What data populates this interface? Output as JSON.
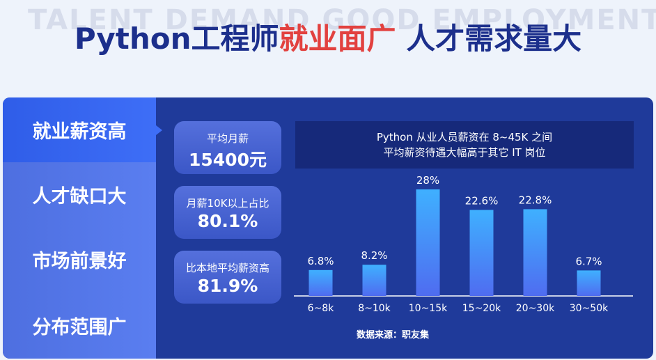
{
  "watermark": "TALENT DEMAND GOOD EMPLOYMENT",
  "headline": {
    "part1": "Python工程师",
    "part2": "就业面广",
    "part3": "人才需求量大"
  },
  "sidebar": {
    "tabs": [
      {
        "label": "就业薪资高",
        "active": true
      },
      {
        "label": "人才缺口大",
        "active": false
      },
      {
        "label": "市场前景好",
        "active": false
      },
      {
        "label": "分布范围广",
        "active": false
      }
    ]
  },
  "stats": [
    {
      "label": "平均月薪",
      "value": "15400元"
    },
    {
      "label": "月薪10K以上占比",
      "value": "80.1%"
    },
    {
      "label": "比本地平均薪资高",
      "value": "81.9%"
    }
  ],
  "note": {
    "line1": "Python 从业人员薪资在 8~45K 之间",
    "line2": "平均薪资待遇大幅高于其它 IT 岗位"
  },
  "source": "数据来源：职友集",
  "colors": {
    "accent_red": "#e2413f",
    "title_blue": "#1c2f8c",
    "panel_bg": "#1f3a9a",
    "bar_top": "#3fb0ff",
    "bar_bottom": "#4f6cf0"
  },
  "chart_data": {
    "type": "bar",
    "categories": [
      "6~8k",
      "8~10k",
      "10~15k",
      "15~20k",
      "20~30k",
      "30~50k"
    ],
    "values": [
      6.8,
      8.2,
      28,
      22.6,
      22.8,
      6.7
    ],
    "labels": [
      "6.8%",
      "8.2%",
      "28%",
      "22.6%",
      "22.8%",
      "6.7%"
    ],
    "ylim": [
      0,
      28
    ],
    "grid": false
  }
}
